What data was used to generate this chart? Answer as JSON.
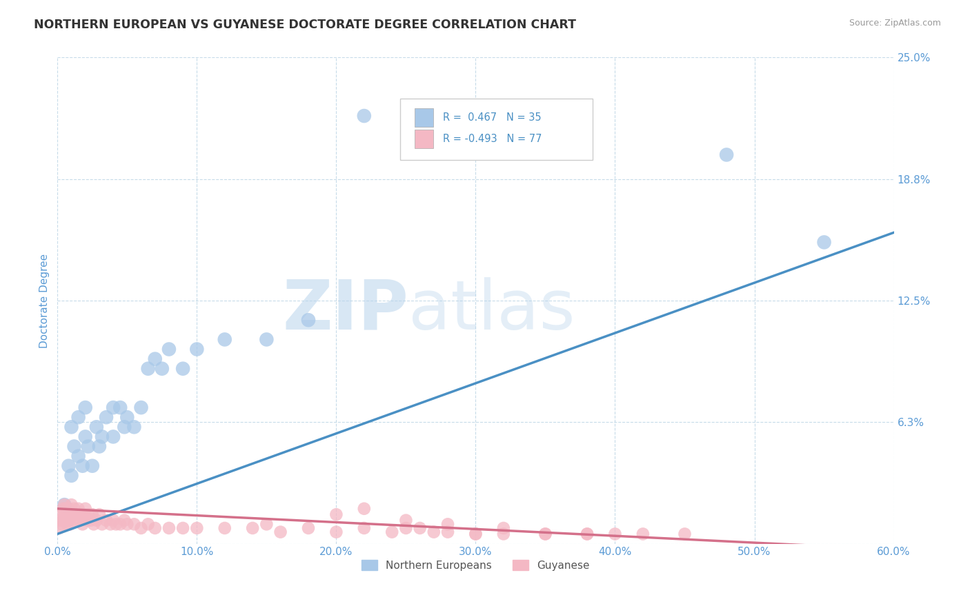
{
  "title": "NORTHERN EUROPEAN VS GUYANESE DOCTORATE DEGREE CORRELATION CHART",
  "source": "Source: ZipAtlas.com",
  "ylabel": "Doctorate Degree",
  "xmin": 0.0,
  "xmax": 0.6,
  "ymin": 0.0,
  "ymax": 0.25,
  "yticks": [
    0.0,
    0.0625,
    0.125,
    0.1875,
    0.25
  ],
  "ytick_labels": [
    "",
    "6.3%",
    "12.5%",
    "18.8%",
    "25.0%"
  ],
  "xtick_labels": [
    "0.0%",
    "10.0%",
    "20.0%",
    "30.0%",
    "40.0%",
    "50.0%",
    "60.0%"
  ],
  "xticks": [
    0.0,
    0.1,
    0.2,
    0.3,
    0.4,
    0.5,
    0.6
  ],
  "blue_color": "#a8c8e8",
  "pink_color": "#f4b8c4",
  "blue_line_color": "#4a90c4",
  "pink_line_color": "#d4708a",
  "title_color": "#333333",
  "axis_label_color": "#5b9bd5",
  "tick_label_color": "#5b9bd5",
  "watermark_zip": "ZIP",
  "watermark_atlas": "atlas",
  "blue_scatter_x": [
    0.005,
    0.008,
    0.01,
    0.01,
    0.012,
    0.015,
    0.015,
    0.018,
    0.02,
    0.02,
    0.022,
    0.025,
    0.028,
    0.03,
    0.032,
    0.035,
    0.04,
    0.04,
    0.045,
    0.048,
    0.05,
    0.055,
    0.06,
    0.065,
    0.07,
    0.075,
    0.08,
    0.09,
    0.1,
    0.12,
    0.15,
    0.18,
    0.22,
    0.48,
    0.55
  ],
  "blue_scatter_y": [
    0.02,
    0.04,
    0.035,
    0.06,
    0.05,
    0.045,
    0.065,
    0.04,
    0.055,
    0.07,
    0.05,
    0.04,
    0.06,
    0.05,
    0.055,
    0.065,
    0.055,
    0.07,
    0.07,
    0.06,
    0.065,
    0.06,
    0.07,
    0.09,
    0.095,
    0.09,
    0.1,
    0.09,
    0.1,
    0.105,
    0.105,
    0.115,
    0.22,
    0.2,
    0.155
  ],
  "pink_scatter_x": [
    0.001,
    0.002,
    0.003,
    0.003,
    0.004,
    0.004,
    0.005,
    0.005,
    0.006,
    0.006,
    0.007,
    0.007,
    0.008,
    0.008,
    0.009,
    0.009,
    0.01,
    0.01,
    0.011,
    0.012,
    0.013,
    0.014,
    0.015,
    0.016,
    0.017,
    0.018,
    0.019,
    0.02,
    0.021,
    0.022,
    0.024,
    0.025,
    0.026,
    0.028,
    0.03,
    0.032,
    0.035,
    0.038,
    0.04,
    0.042,
    0.045,
    0.048,
    0.05,
    0.055,
    0.06,
    0.065,
    0.07,
    0.08,
    0.09,
    0.1,
    0.12,
    0.14,
    0.15,
    0.16,
    0.18,
    0.2,
    0.22,
    0.24,
    0.26,
    0.28,
    0.3,
    0.32,
    0.35,
    0.38,
    0.4,
    0.25,
    0.27,
    0.3,
    0.35,
    0.38,
    0.42,
    0.45,
    0.2,
    0.22,
    0.25,
    0.28,
    0.32
  ],
  "pink_scatter_y": [
    0.008,
    0.012,
    0.01,
    0.015,
    0.012,
    0.018,
    0.015,
    0.02,
    0.012,
    0.018,
    0.01,
    0.015,
    0.012,
    0.018,
    0.01,
    0.016,
    0.014,
    0.02,
    0.015,
    0.018,
    0.012,
    0.015,
    0.018,
    0.012,
    0.015,
    0.01,
    0.015,
    0.018,
    0.012,
    0.015,
    0.012,
    0.015,
    0.01,
    0.012,
    0.015,
    0.01,
    0.012,
    0.01,
    0.012,
    0.01,
    0.01,
    0.012,
    0.01,
    0.01,
    0.008,
    0.01,
    0.008,
    0.008,
    0.008,
    0.008,
    0.008,
    0.008,
    0.01,
    0.006,
    0.008,
    0.006,
    0.008,
    0.006,
    0.008,
    0.006,
    0.005,
    0.005,
    0.005,
    0.005,
    0.005,
    0.008,
    0.006,
    0.005,
    0.005,
    0.005,
    0.005,
    0.005,
    0.015,
    0.018,
    0.012,
    0.01,
    0.008
  ],
  "blue_trend_x": [
    0.0,
    0.6
  ],
  "blue_trend_y": [
    0.005,
    0.16
  ],
  "pink_trend_x": [
    0.0,
    0.6
  ],
  "pink_trend_y": [
    0.018,
    -0.003
  ]
}
